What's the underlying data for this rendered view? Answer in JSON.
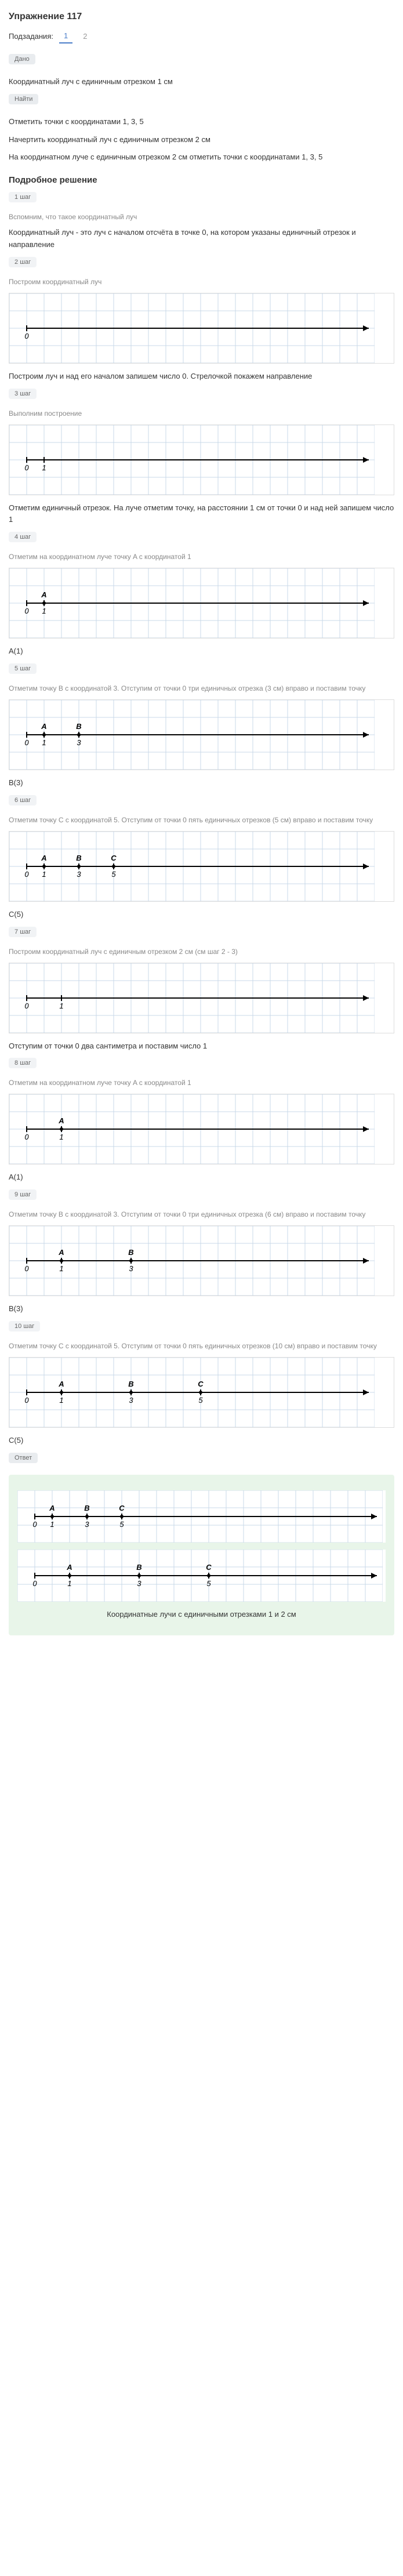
{
  "exercise_title": "Упражнение 117",
  "subtasks_label": "Подзадания:",
  "subtasks": [
    "1",
    "2"
  ],
  "dano_label": "Дано",
  "dano_lines": [
    "Координатный луч с единичным отрезком 1 см",
    "Отметить точки с координатами 1, 3, 5",
    "Начертить координатный луч с единичным отрезком 2 см",
    "На координатном луче с единичным отрезком 2 см отметить точки с координатами 1, 3, 5"
  ],
  "naiti_label": "Найти",
  "detailed_title": "Подробное решение",
  "step_label_prefix": "шаг",
  "steps": [
    {
      "n": "1",
      "intro": "Вспомним, что такое координатный луч",
      "text": "Координатный луч - это луч с началом отсчёта в точке 0, на котором указаны единичный отрезок и направление"
    },
    {
      "n": "2",
      "intro": "Построим координатный луч",
      "text": ""
    },
    {
      "n": "3",
      "intro": "Выполним построение",
      "text": "Построим луч и над его началом запишем число 0. Стрелочкой покажем направление"
    },
    {
      "n": "4",
      "intro": "Отметим на координатном луче точку A с координатой 1",
      "text": "Отметим единичный отрезок. На луче отметим точку, на расстоянии 1 см от точки 0 и над ней запишем число 1"
    },
    {
      "n": "5",
      "intro": "Отметим точку B с координатой 3. Отступим от точки 0 три единичных отрезка (3 см) вправо и поставим точку",
      "text": ""
    },
    {
      "n": "6",
      "intro": "Отметим точку C с координатой 5. Отступим от точки 0 пять единичных отрезков (5 см) вправо и поставим точку",
      "text": ""
    },
    {
      "n": "7",
      "intro": "Построим координатный луч с единичным отрезком 2 см (см шаг 2 - 3)",
      "text": ""
    },
    {
      "n": "8",
      "intro": "Отметим на координатном луче точку A с координатой 1",
      "text": "Отступим от точки 0 два сантиметра и поставим число 1"
    },
    {
      "n": "9",
      "intro": "Отметим точку B с координатой 3. Отступим от точки 0 три единичных отрезка (6 см) вправо и поставим точку",
      "text": ""
    },
    {
      "n": "10",
      "intro": "Отметим точку C с координатой 5. Отступим от точки 0 пять единичных отрезков (10 см) вправо и поставим точку",
      "text": ""
    }
  ],
  "results": {
    "A1": "A(1)",
    "B3": "B(3)",
    "C5": "C(5)"
  },
  "answer_label": "Ответ",
  "answer_caption": "Координатные лучи с единичными отрезками 1 и 2 см",
  "grid": {
    "cell": 30,
    "cols": 21,
    "grid_color": "#c8d8e8",
    "bg": "#ffffff",
    "line_color": "#000000",
    "label_font": 13
  },
  "diagrams": {
    "d1_blank": {
      "rows": 4,
      "arrow_y_row": 2,
      "x0_col": 1,
      "ticks": [
        {
          "col": 1,
          "label": "0"
        }
      ]
    },
    "d2_zero": {
      "rows": 4,
      "arrow_y_row": 2,
      "x0_col": 1,
      "ticks": [
        {
          "col": 1,
          "label": "0"
        },
        {
          "col": 2,
          "label": "1"
        }
      ]
    },
    "d3_A": {
      "rows": 4,
      "arrow_y_row": 2,
      "x0_col": 1,
      "ticks": [
        {
          "col": 1,
          "label": "0"
        },
        {
          "col": 2,
          "label": "1"
        }
      ],
      "points": [
        {
          "col": 2,
          "label": "A"
        }
      ]
    },
    "d4_AB": {
      "rows": 4,
      "arrow_y_row": 2,
      "x0_col": 1,
      "ticks": [
        {
          "col": 1,
          "label": "0"
        },
        {
          "col": 2,
          "label": "1"
        },
        {
          "col": 4,
          "label": "3"
        }
      ],
      "points": [
        {
          "col": 2,
          "label": "A"
        },
        {
          "col": 4,
          "label": "B"
        }
      ]
    },
    "d5_ABC": {
      "rows": 4,
      "arrow_y_row": 2,
      "x0_col": 1,
      "ticks": [
        {
          "col": 1,
          "label": "0"
        },
        {
          "col": 2,
          "label": "1"
        },
        {
          "col": 4,
          "label": "3"
        },
        {
          "col": 6,
          "label": "5"
        }
      ],
      "points": [
        {
          "col": 2,
          "label": "A"
        },
        {
          "col": 4,
          "label": "B"
        },
        {
          "col": 6,
          "label": "C"
        }
      ]
    },
    "d6_w2_blank": {
      "rows": 4,
      "arrow_y_row": 2,
      "x0_col": 1,
      "ticks": [
        {
          "col": 1,
          "label": "0"
        },
        {
          "col": 3,
          "label": "1"
        }
      ]
    },
    "d7_w2_A": {
      "rows": 4,
      "arrow_y_row": 2,
      "x0_col": 1,
      "ticks": [
        {
          "col": 1,
          "label": "0"
        },
        {
          "col": 3,
          "label": "1"
        }
      ],
      "points": [
        {
          "col": 3,
          "label": "A"
        }
      ]
    },
    "d8_w2_AB": {
      "rows": 4,
      "arrow_y_row": 2,
      "x0_col": 1,
      "ticks": [
        {
          "col": 1,
          "label": "0"
        },
        {
          "col": 3,
          "label": "1"
        },
        {
          "col": 7,
          "label": "3"
        }
      ],
      "points": [
        {
          "col": 3,
          "label": "A"
        },
        {
          "col": 7,
          "label": "B"
        }
      ]
    },
    "d9_w2_ABC": {
      "rows": 4,
      "arrow_y_row": 2,
      "x0_col": 1,
      "ticks": [
        {
          "col": 1,
          "label": "0"
        },
        {
          "col": 3,
          "label": "1"
        },
        {
          "col": 7,
          "label": "3"
        },
        {
          "col": 11,
          "label": "5"
        }
      ],
      "points": [
        {
          "col": 3,
          "label": "A"
        },
        {
          "col": 7,
          "label": "B"
        },
        {
          "col": 11,
          "label": "C"
        }
      ]
    },
    "answer1": {
      "rows": 3,
      "arrow_y_row": 1.5,
      "x0_col": 1,
      "ticks": [
        {
          "col": 1,
          "label": "0"
        },
        {
          "col": 2,
          "label": "1"
        },
        {
          "col": 4,
          "label": "3"
        },
        {
          "col": 6,
          "label": "5"
        }
      ],
      "points": [
        {
          "col": 2,
          "label": "A"
        },
        {
          "col": 4,
          "label": "B"
        },
        {
          "col": 6,
          "label": "C"
        }
      ]
    },
    "answer2": {
      "rows": 3,
      "arrow_y_row": 1.5,
      "x0_col": 1,
      "ticks": [
        {
          "col": 1,
          "label": "0"
        },
        {
          "col": 3,
          "label": "1"
        },
        {
          "col": 7,
          "label": "3"
        },
        {
          "col": 11,
          "label": "5"
        }
      ],
      "points": [
        {
          "col": 3,
          "label": "A"
        },
        {
          "col": 7,
          "label": "B"
        },
        {
          "col": 11,
          "label": "C"
        }
      ]
    }
  }
}
